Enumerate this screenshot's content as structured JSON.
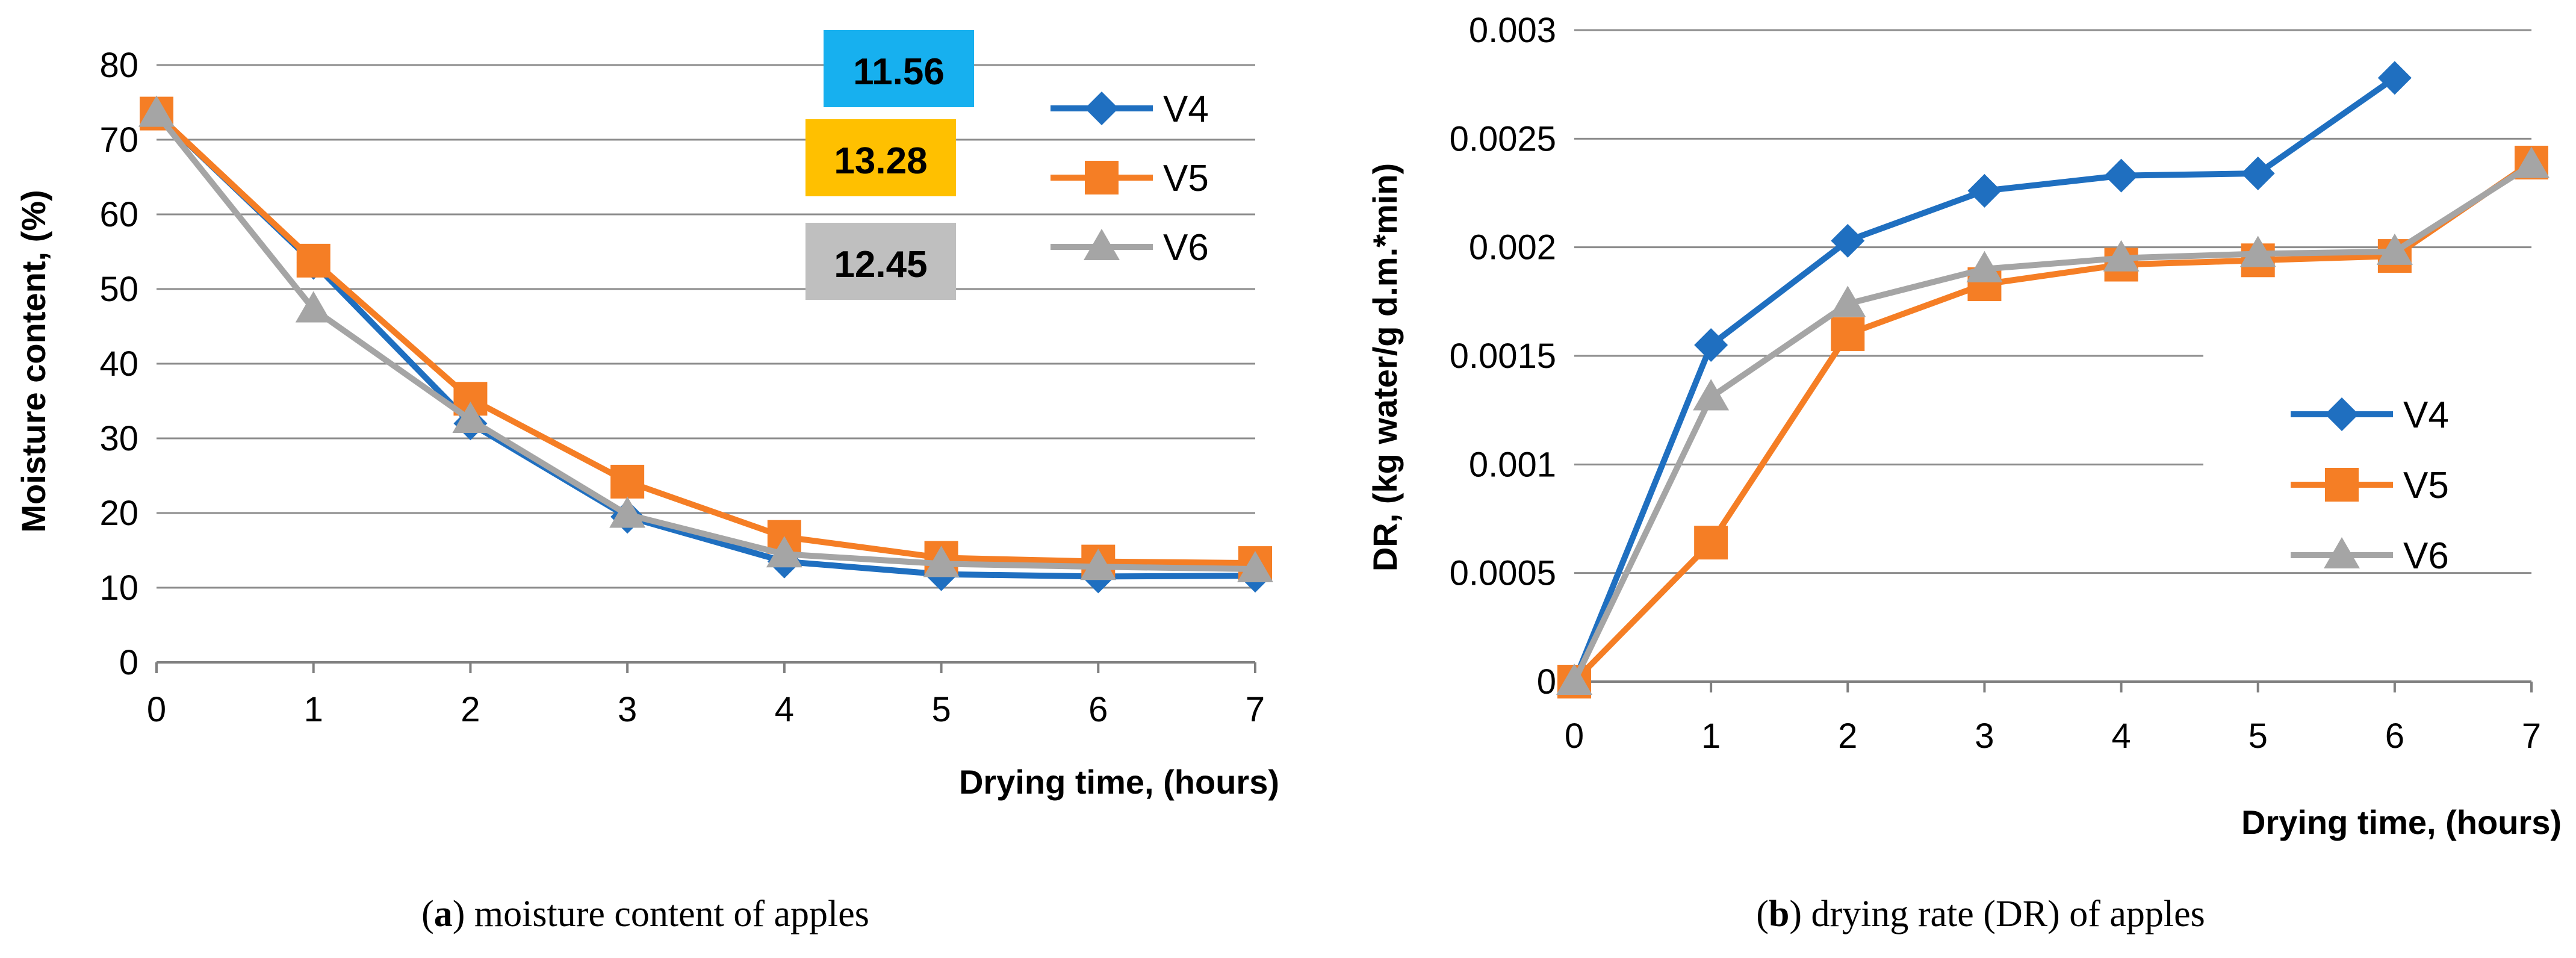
{
  "colors": {
    "V4": "#1f6fc0",
    "V5": "#f57e25",
    "V6": "#a5a5a5",
    "grid": "#8c8c8c",
    "axis": "#7f7f7f",
    "callout_blue": "#17b0ef",
    "callout_orange": "#ffc000",
    "callout_gray": "#bfbfbf"
  },
  "chart_data": [
    {
      "type": "line",
      "caption_letter": "a",
      "caption_text": ") moisture content of apples",
      "xlabel": "Drying time, (hours)",
      "ylabel": "Moisture content, (%)",
      "x": [
        0,
        1,
        2,
        3,
        4,
        5,
        6,
        7
      ],
      "xticks": [
        "0",
        "1",
        "2",
        "3",
        "4",
        "5",
        "6",
        "7"
      ],
      "yticks": [
        "0",
        "10",
        "20",
        "30",
        "40",
        "50",
        "60",
        "70",
        "80"
      ],
      "ylim": [
        0,
        80
      ],
      "grid": true,
      "legend_position": "top-right",
      "series": [
        {
          "name": "V4",
          "marker": "diamond",
          "values": [
            73.5,
            53.5,
            32,
            19.5,
            13.5,
            11.8,
            11.5,
            11.6
          ]
        },
        {
          "name": "V5",
          "marker": "square",
          "values": [
            73.5,
            53.8,
            35.3,
            24.2,
            16.8,
            14,
            13.5,
            13.3
          ]
        },
        {
          "name": "V6",
          "marker": "triangle",
          "values": [
            73.5,
            47.3,
            32.5,
            19.8,
            14.5,
            13.2,
            12.8,
            12.5
          ]
        }
      ],
      "annotations": [
        "11.56",
        "13.28",
        "12.45"
      ]
    },
    {
      "type": "line",
      "caption_letter": "b",
      "caption_text": ") drying rate (DR) of apples",
      "xlabel": "Drying time, (hours)",
      "ylabel": "DR, (kg water/g d.m.*min)",
      "x": [
        0,
        1,
        2,
        3,
        4,
        5,
        6,
        7
      ],
      "xticks": [
        "0",
        "1",
        "2",
        "3",
        "4",
        "5",
        "6",
        "7"
      ],
      "yticks": [
        "0",
        "0.0005",
        "0.001",
        "0.0015",
        "0.002",
        "0.0025",
        "0.003"
      ],
      "ylim": [
        0,
        0.003
      ],
      "grid": true,
      "legend_position": "center-right",
      "series": [
        {
          "name": "V4",
          "marker": "diamond",
          "values": [
            0,
            0.00155,
            0.00203,
            0.00226,
            0.00233,
            0.00234,
            0.00278,
            null
          ]
        },
        {
          "name": "V5",
          "marker": "square",
          "values": [
            0,
            0.00064,
            0.0016,
            0.00183,
            0.00192,
            0.00194,
            0.00196,
            0.00239
          ]
        },
        {
          "name": "V6",
          "marker": "triangle",
          "values": [
            0,
            0.00131,
            0.00174,
            0.0019,
            0.00195,
            0.00197,
            0.00198,
            0.00238
          ]
        }
      ]
    }
  ]
}
